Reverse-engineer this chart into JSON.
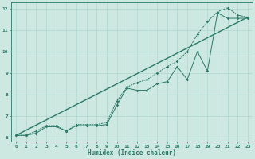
{
  "xlabel": "Humidex (Indice chaleur)",
  "background_color": "#cce8e0",
  "grid_color": "#b0d8d0",
  "line_color": "#2a7a6a",
  "xlim": [
    -0.5,
    23.5
  ],
  "ylim": [
    5.8,
    12.3
  ],
  "xticks": [
    0,
    1,
    2,
    3,
    4,
    5,
    6,
    7,
    8,
    9,
    10,
    11,
    12,
    13,
    14,
    15,
    16,
    17,
    18,
    19,
    20,
    21,
    22,
    23
  ],
  "yticks": [
    6,
    7,
    8,
    9,
    10,
    11,
    12
  ],
  "line1_x": [
    0,
    1,
    2,
    3,
    4,
    5,
    6,
    7,
    8,
    9,
    10,
    11,
    12,
    13,
    14,
    15,
    16,
    17,
    18,
    19,
    20,
    21,
    22,
    23
  ],
  "line1_y": [
    6.1,
    6.1,
    6.2,
    6.5,
    6.5,
    6.3,
    6.55,
    6.55,
    6.55,
    6.6,
    7.5,
    8.3,
    8.2,
    8.2,
    8.5,
    8.6,
    9.3,
    8.7,
    10.0,
    9.1,
    11.8,
    11.55,
    11.55,
    11.55
  ],
  "line2_x": [
    0,
    23
  ],
  "line2_y": [
    6.1,
    11.6
  ],
  "line3_x": [
    0,
    1,
    2,
    3,
    4,
    5,
    6,
    7,
    8,
    9,
    10,
    11,
    12,
    13,
    14,
    15,
    16,
    17,
    18,
    19,
    20,
    21,
    22,
    23
  ],
  "line3_y": [
    6.1,
    6.1,
    6.3,
    6.55,
    6.55,
    6.3,
    6.6,
    6.6,
    6.6,
    6.7,
    7.7,
    8.35,
    8.55,
    8.7,
    9.0,
    9.3,
    9.55,
    10.0,
    10.8,
    11.4,
    11.85,
    12.05,
    11.7,
    11.6
  ]
}
